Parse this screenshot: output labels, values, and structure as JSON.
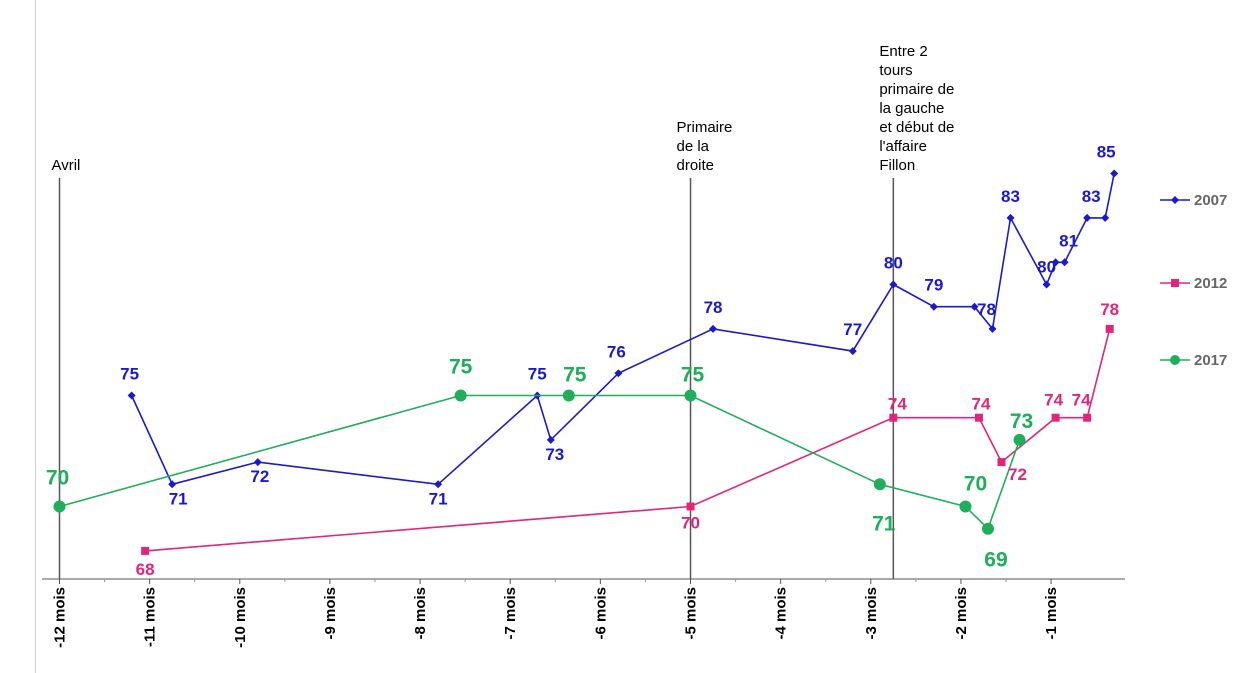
{
  "chart_data": {
    "type": "line",
    "title": "",
    "xlabel": "",
    "ylabel": "",
    "x_ticks": [
      -12,
      -11,
      -10,
      -9,
      -8,
      -7,
      -6,
      -5,
      -4,
      -3,
      -2,
      -1
    ],
    "x_tick_labels": [
      "-12 mois",
      "-11 mois",
      "-10 mois",
      "-9 mois",
      "-8 mois",
      "-7 mois",
      "-6 mois",
      "-5 mois",
      "-4 mois",
      "-3 mois",
      "-2 mois",
      "-1 mois"
    ],
    "xlim": [
      -12.05,
      -0.18
    ],
    "ylim": [
      62.5,
      92.5
    ],
    "grid": false,
    "legend_position": "right",
    "annotations": [
      {
        "x": -12,
        "lines": [
          "Avril"
        ]
      },
      {
        "x": -5,
        "lines": [
          "Primaire",
          "de la",
          "droite"
        ]
      },
      {
        "x": -2.75,
        "lines": [
          "Entre 2",
          "tours",
          "primaire de",
          "la gauche",
          "et début de",
          "l'affaire",
          "Fillon"
        ]
      }
    ],
    "series": [
      {
        "name": "2007",
        "color": "#1a1acc",
        "marker": "diamond",
        "x": [
          -11.2,
          -10.75,
          -9.8,
          -7.8,
          -6.7,
          -6.55,
          -5.8,
          -4.75,
          -3.2,
          -2.75,
          -2.3,
          -1.85,
          -1.65,
          -1.45,
          -1.05,
          -0.95,
          -0.85,
          -0.6,
          -0.4,
          -0.3
        ],
        "values": [
          75,
          71,
          72,
          71,
          75,
          73,
          76,
          78,
          77,
          80,
          79,
          79,
          78,
          83,
          80,
          81,
          81,
          83,
          83,
          85
        ],
        "labels": [
          "75",
          "71",
          "72",
          "71",
          "75",
          "73",
          "76",
          "78",
          "77",
          "80",
          "79",
          "",
          "78",
          "83",
          "80",
          "",
          "81",
          "",
          "83",
          "85"
        ]
      },
      {
        "name": "2012",
        "color": "#e0267a",
        "marker": "square",
        "x": [
          -11.05,
          -5,
          -2.75,
          -1.8,
          -1.55,
          -0.95,
          -0.6,
          -0.35
        ],
        "values": [
          68,
          70,
          74,
          74,
          72,
          74,
          74,
          78
        ],
        "labels": [
          "68",
          "70",
          "74",
          "74",
          "72",
          "74",
          "74",
          "78"
        ]
      },
      {
        "name": "2017",
        "color": "#1fae5a",
        "marker": "circle",
        "x": [
          -12,
          -7.55,
          -6.35,
          -5,
          -2.9,
          -1.95,
          -1.7,
          -1.35
        ],
        "values": [
          70,
          75,
          75,
          75,
          71,
          70,
          69,
          73
        ],
        "labels": [
          "70",
          "75",
          "75",
          "75",
          "71",
          "70",
          "69",
          "73"
        ]
      }
    ]
  }
}
